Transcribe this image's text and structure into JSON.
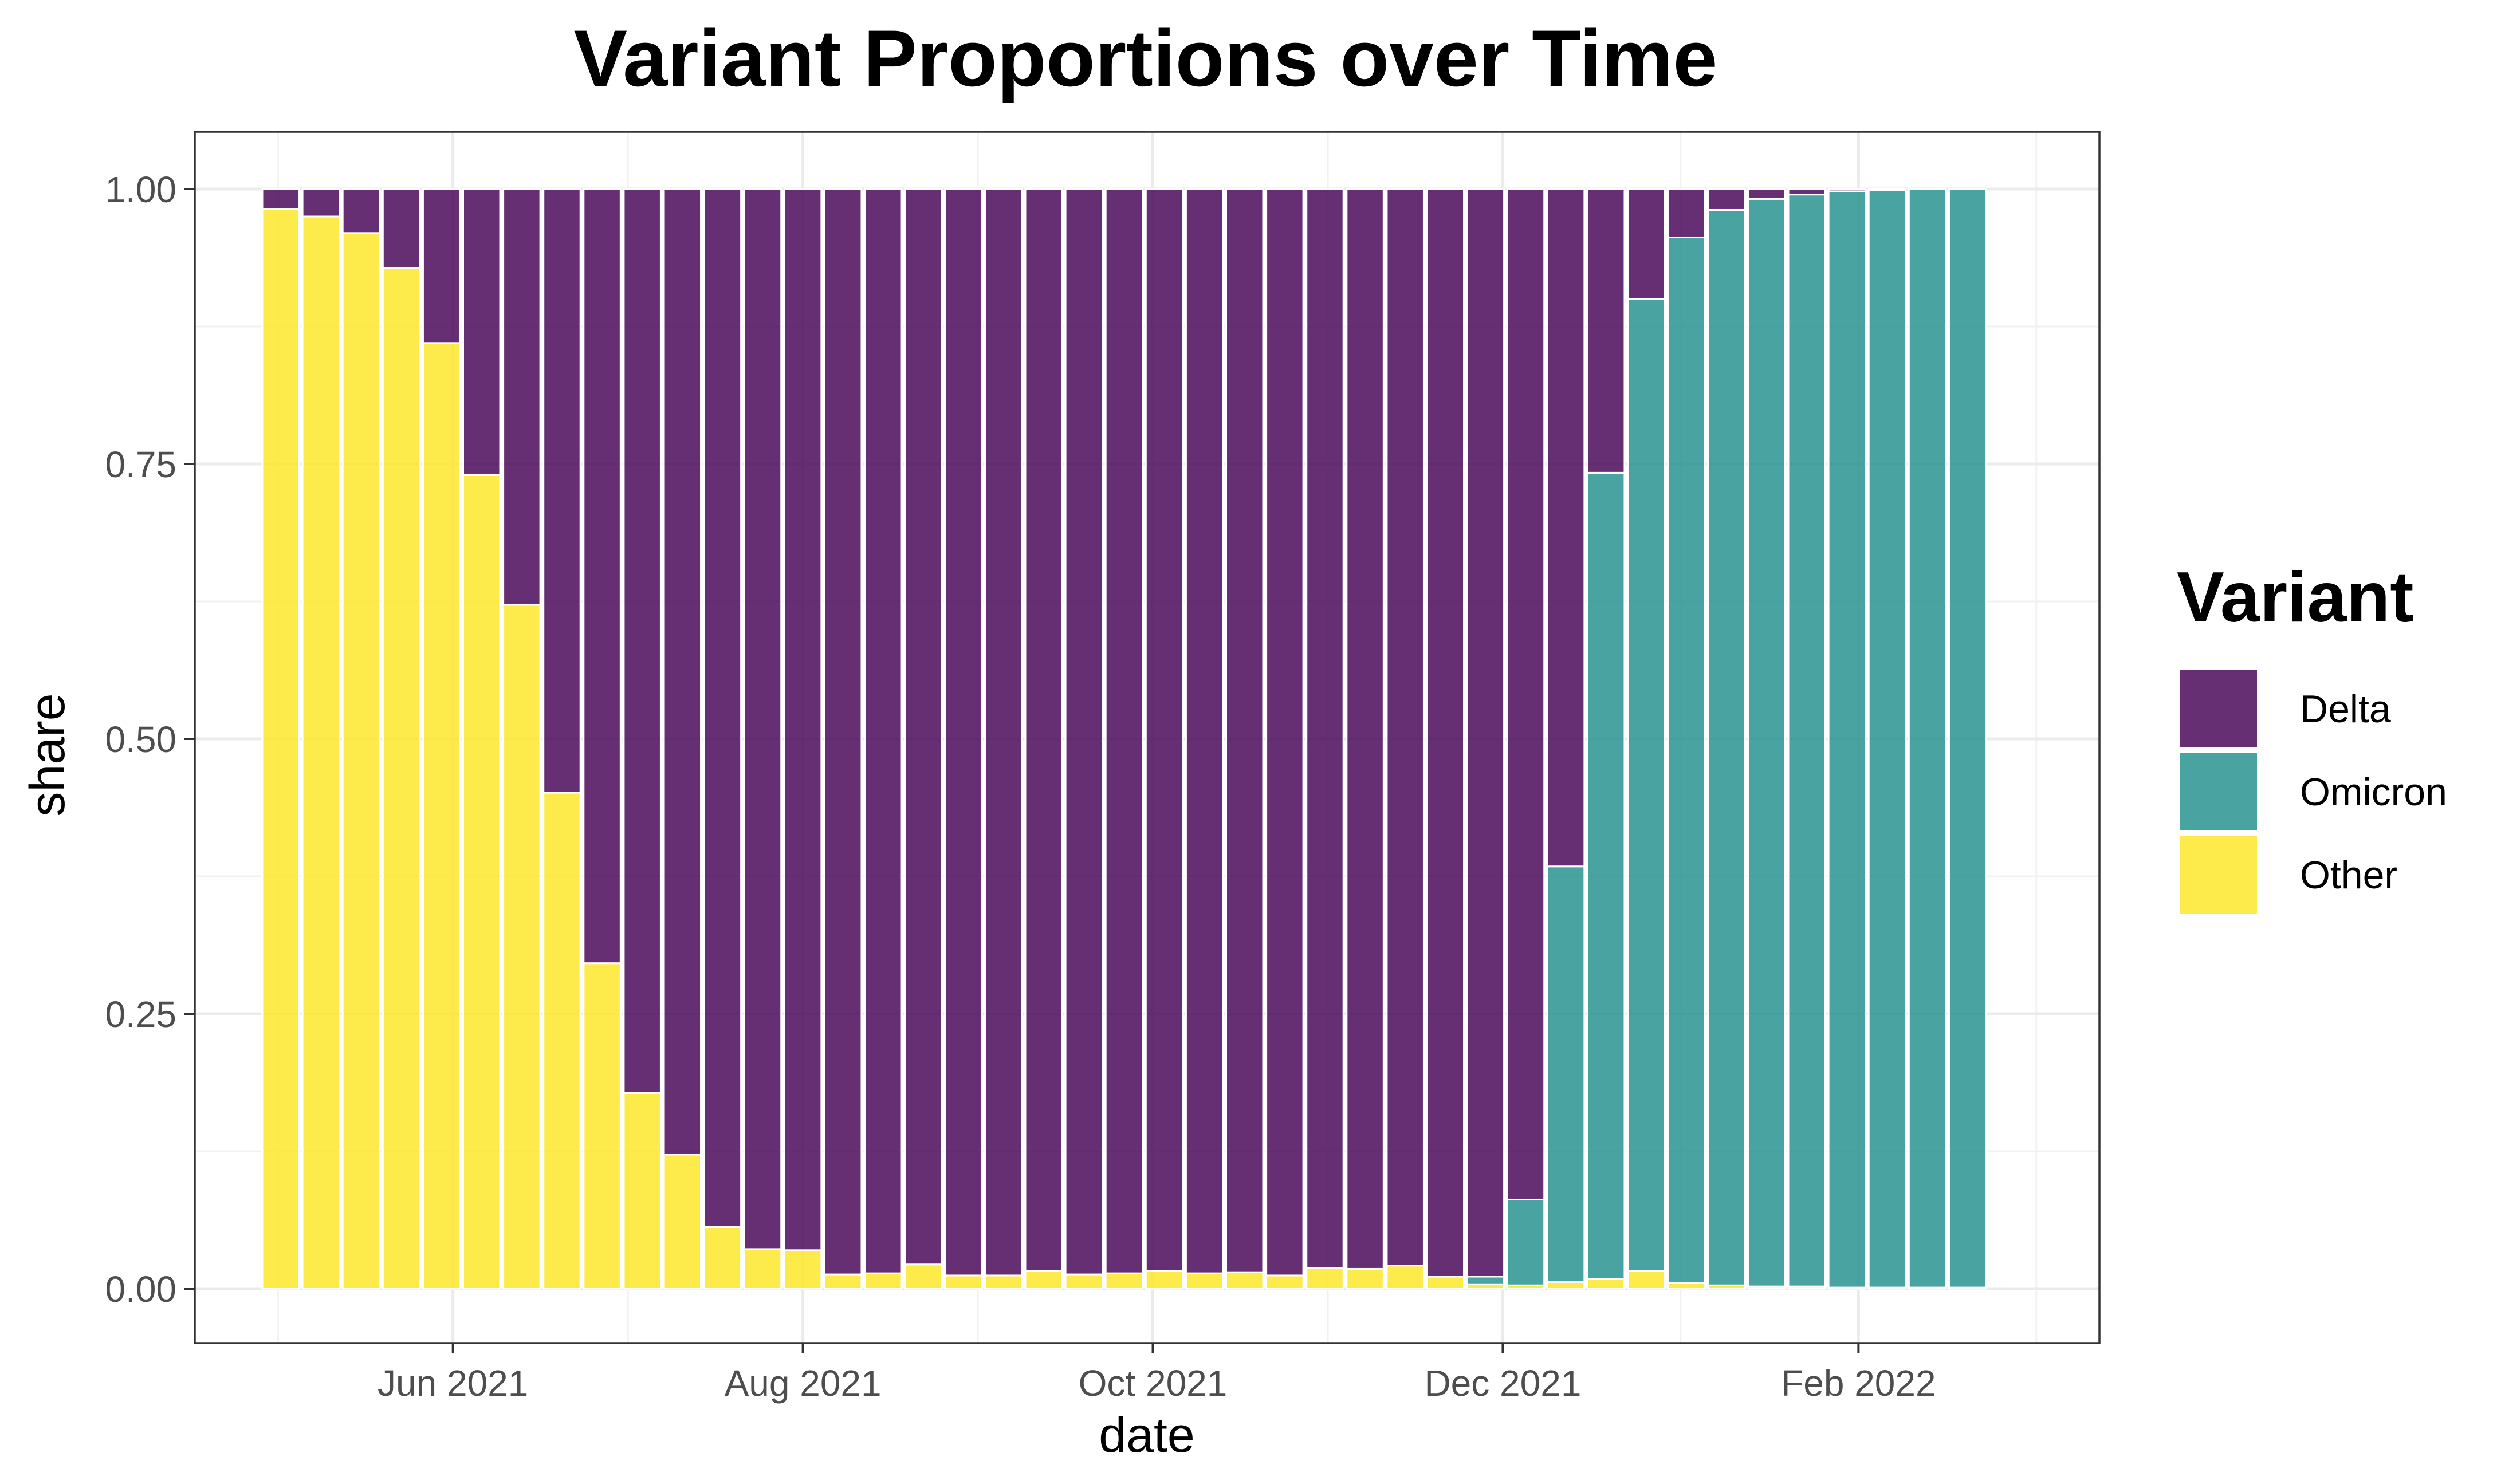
{
  "chart_data": {
    "type": "bar",
    "stacked": true,
    "title": "Variant Proportions over Time",
    "xlabel": "date",
    "ylabel": "share",
    "ylim": [
      0,
      1
    ],
    "y_ticks": [
      "0.00",
      "0.25",
      "0.50",
      "0.75",
      "1.00"
    ],
    "y_tick_values": [
      0,
      0.25,
      0.5,
      0.75,
      1.0
    ],
    "x_ticks": [
      {
        "label": "Jun 2021",
        "date": "2021-06-01"
      },
      {
        "label": "Aug 2021",
        "date": "2021-08-01"
      },
      {
        "label": "Oct 2021",
        "date": "2021-10-01"
      },
      {
        "label": "Dec 2021",
        "date": "2021-12-01"
      },
      {
        "label": "Feb 2022",
        "date": "2022-02-01"
      }
    ],
    "xlim": [
      "2021-04-17",
      "2022-03-15"
    ],
    "grid": true,
    "legend": {
      "title": "Variant",
      "position": "right",
      "entries": [
        {
          "name": "Delta",
          "color": "#440154"
        },
        {
          "name": "Omicron",
          "color": "#21908C"
        },
        {
          "name": "Other",
          "color": "#FDE725"
        }
      ]
    },
    "stack_order_bottom_to_top": [
      "Other",
      "Omicron",
      "Delta"
    ],
    "x": [
      "2021-05-02",
      "2021-05-09",
      "2021-05-16",
      "2021-05-23",
      "2021-05-30",
      "2021-06-06",
      "2021-06-13",
      "2021-06-20",
      "2021-06-27",
      "2021-07-04",
      "2021-07-11",
      "2021-07-18",
      "2021-07-25",
      "2021-08-01",
      "2021-08-08",
      "2021-08-15",
      "2021-08-22",
      "2021-08-29",
      "2021-09-05",
      "2021-09-12",
      "2021-09-19",
      "2021-09-26",
      "2021-10-03",
      "2021-10-10",
      "2021-10-17",
      "2021-10-24",
      "2021-10-31",
      "2021-11-07",
      "2021-11-14",
      "2021-11-21",
      "2021-11-28",
      "2021-12-05",
      "2021-12-12",
      "2021-12-19",
      "2021-12-26",
      "2022-01-02",
      "2022-01-09",
      "2022-01-16",
      "2022-01-23",
      "2022-01-30",
      "2022-02-06",
      "2022-02-13",
      "2022-02-20"
    ],
    "series": [
      {
        "name": "Other",
        "values": [
          0.982,
          0.975,
          0.96,
          0.928,
          0.86,
          0.74,
          0.622,
          0.451,
          0.296,
          0.178,
          0.122,
          0.056,
          0.036,
          0.035,
          0.013,
          0.014,
          0.022,
          0.012,
          0.012,
          0.016,
          0.013,
          0.014,
          0.016,
          0.014,
          0.015,
          0.012,
          0.019,
          0.018,
          0.021,
          0.011,
          0.004,
          0.003,
          0.006,
          0.009,
          0.016,
          0.005,
          0.003,
          0.002,
          0.002,
          0.001,
          0.001,
          0.001,
          0.001
        ]
      },
      {
        "name": "Omicron",
        "values": [
          0,
          0,
          0,
          0,
          0,
          0,
          0,
          0,
          0,
          0,
          0,
          0,
          0,
          0,
          0,
          0,
          0,
          0,
          0,
          0,
          0,
          0,
          0,
          0,
          0,
          0,
          0,
          0,
          0,
          0,
          0.007,
          0.078,
          0.378,
          0.733,
          0.884,
          0.951,
          0.978,
          0.989,
          0.993,
          0.997,
          0.998,
          0.999,
          0.999
        ]
      },
      {
        "name": "Delta",
        "values": [
          0.018,
          0.025,
          0.04,
          0.072,
          0.14,
          0.26,
          0.378,
          0.549,
          0.704,
          0.822,
          0.878,
          0.944,
          0.964,
          0.965,
          0.987,
          0.986,
          0.978,
          0.988,
          0.988,
          0.984,
          0.987,
          0.986,
          0.984,
          0.986,
          0.985,
          0.988,
          0.981,
          0.982,
          0.979,
          0.989,
          0.989,
          0.919,
          0.616,
          0.258,
          0.1,
          0.044,
          0.019,
          0.009,
          0.005,
          0.002,
          0.001,
          0.0,
          0.0
        ]
      }
    ]
  }
}
